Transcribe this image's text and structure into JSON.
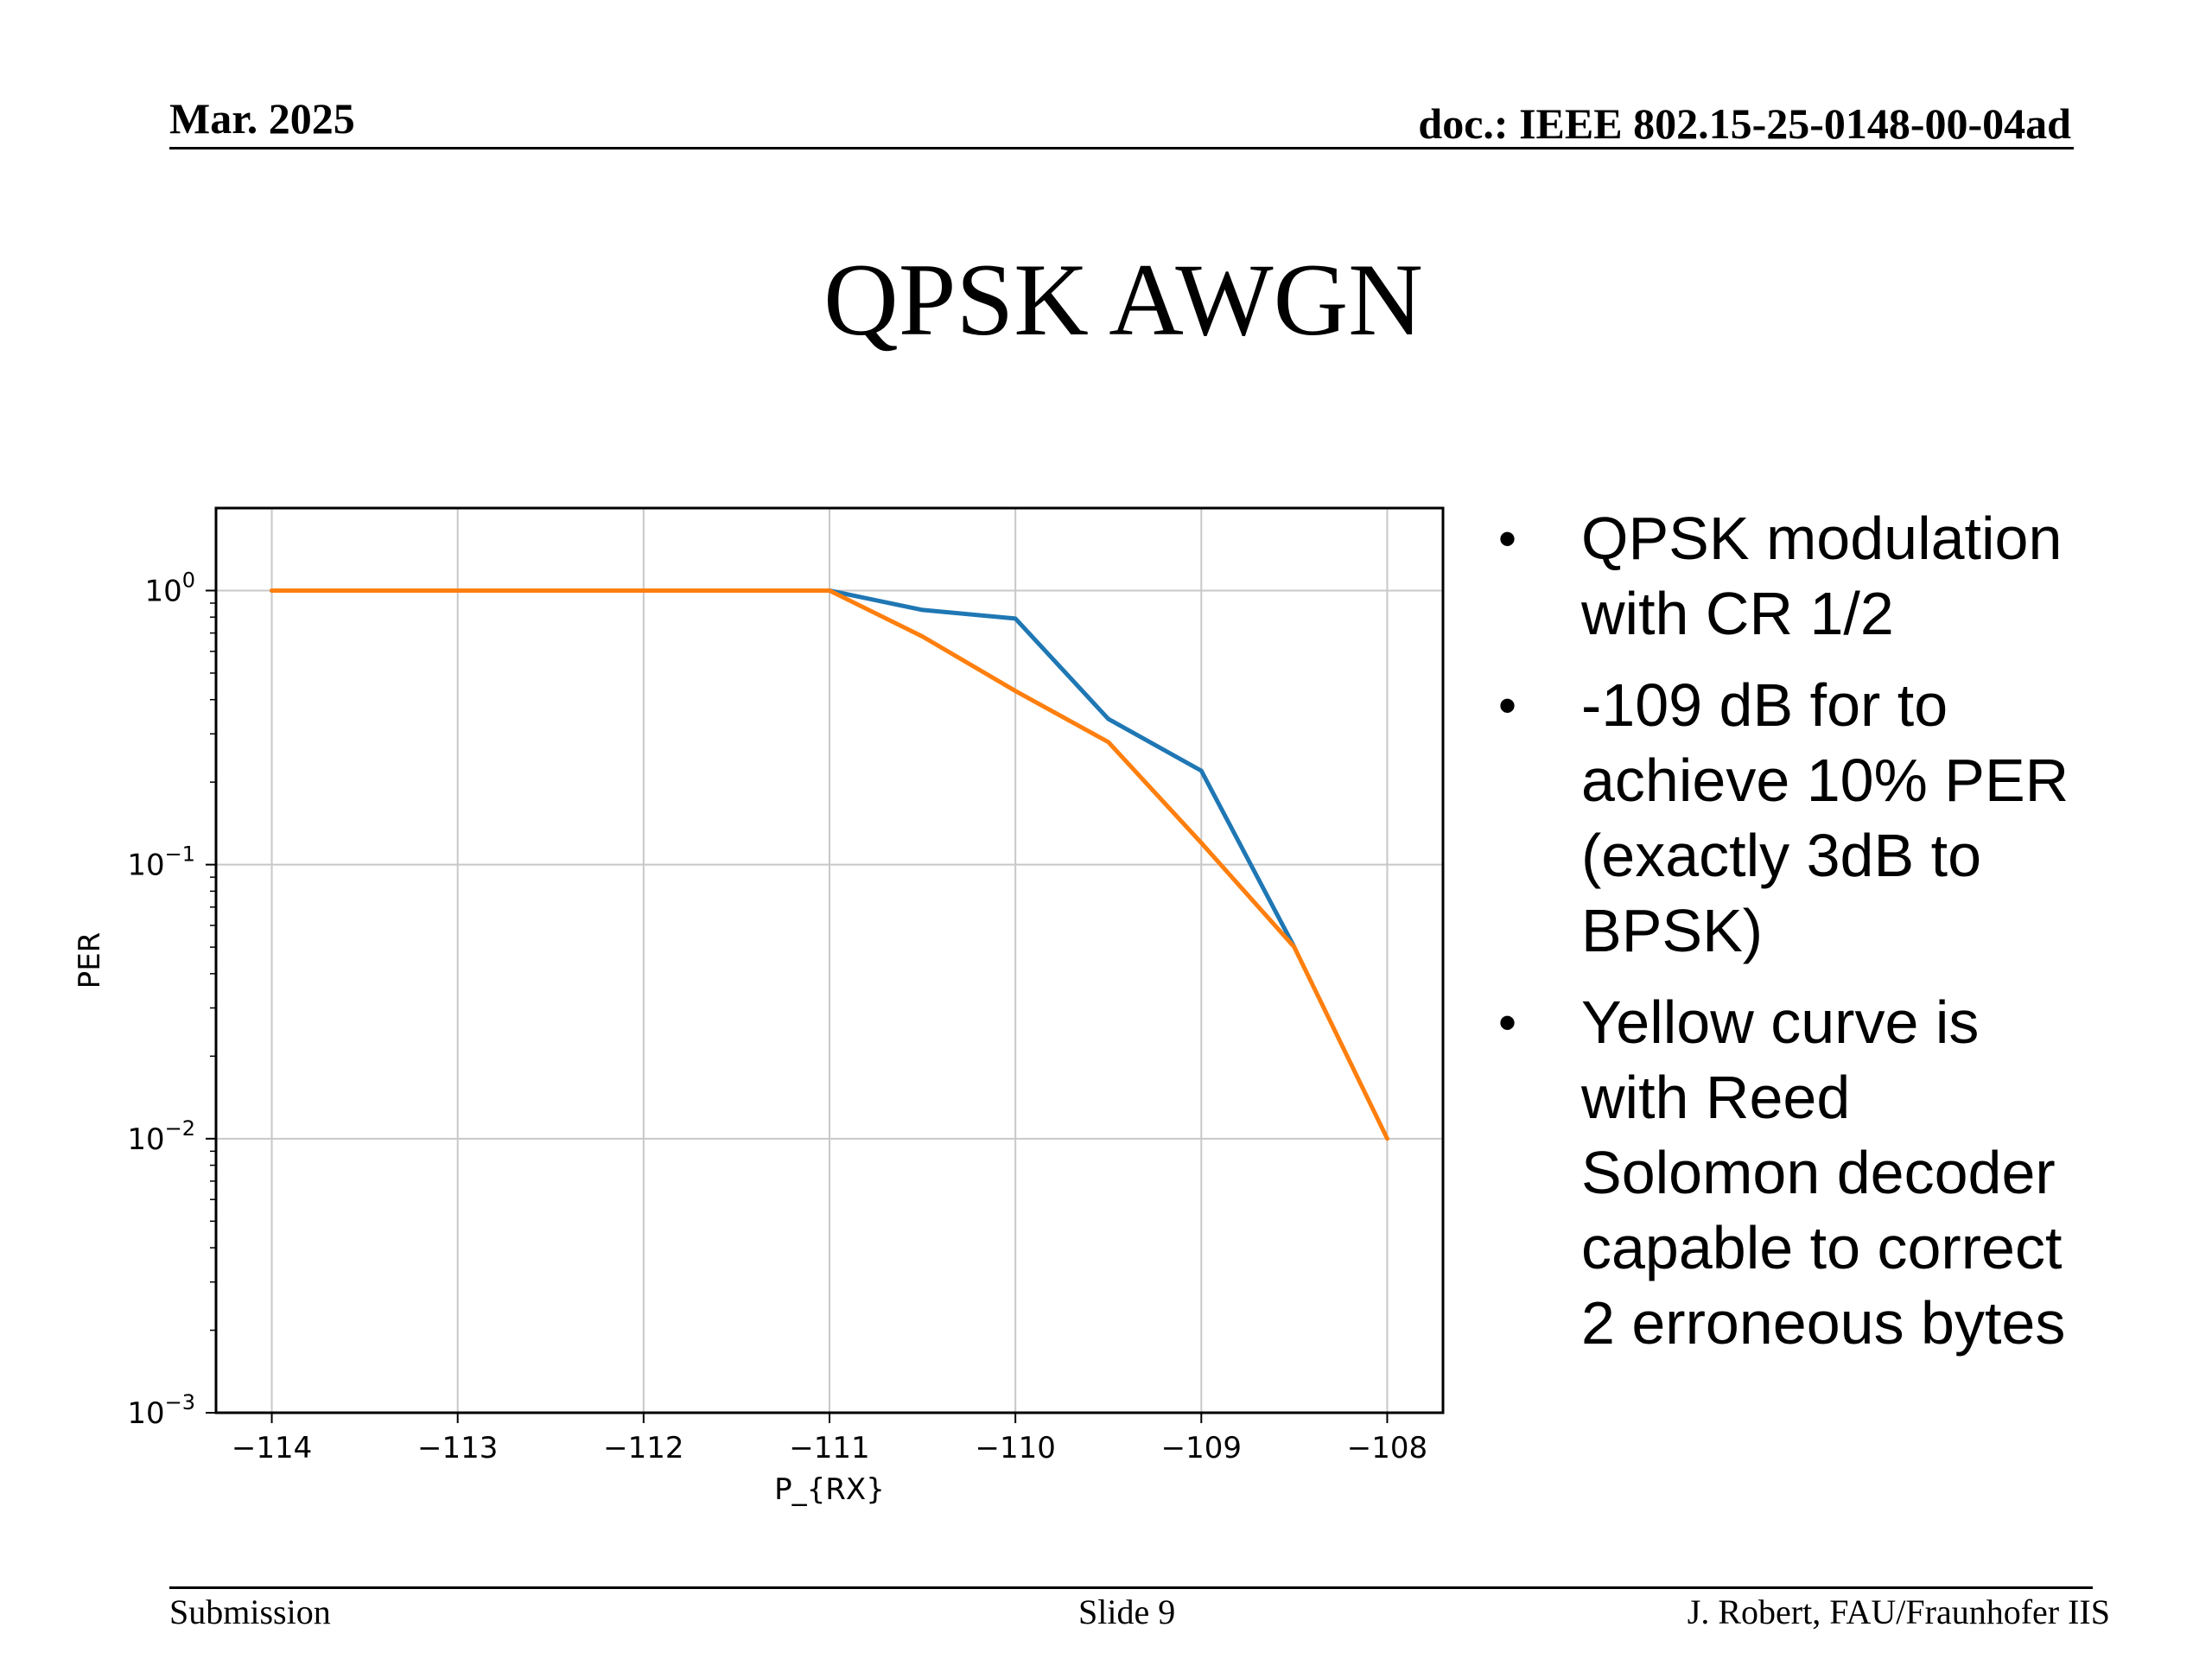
{
  "header": {
    "date": "Mar. 2025",
    "doc": "doc.: IEEE 802.15-25-0148-00-04ad"
  },
  "title": "QPSK AWGN",
  "bullets": [
    "QPSK modulation with CR 1/2",
    "-109 dB for to achieve 10% PER (exactly 3dB to BPSK)",
    "Yellow curve is with Reed Solomon decoder capable to correct 2 erroneous bytes"
  ],
  "footer": {
    "left": "Submission",
    "center": "Slide 9",
    "right": "J. Robert, FAU/Fraunhofer IIS"
  },
  "chart_data": {
    "type": "line",
    "title": "",
    "xlabel": "P_{RX}",
    "ylabel": "PER",
    "xlim": [
      -114.3,
      -107.7
    ],
    "ylim": [
      0.001,
      2
    ],
    "yscale": "log",
    "grid": true,
    "x_ticks": [
      -114,
      -113,
      -112,
      -111,
      -110,
      -109,
      -108
    ],
    "x_tick_labels": [
      "−114",
      "−113",
      "−112",
      "−111",
      "−110",
      "−109",
      "−108"
    ],
    "y_ticks": [
      {
        "value": 1,
        "base": "10",
        "exp": "0"
      },
      {
        "value": 0.1,
        "base": "10",
        "exp": "−1"
      },
      {
        "value": 0.01,
        "base": "10",
        "exp": "−2"
      },
      {
        "value": 0.001,
        "base": "10",
        "exp": "−3"
      }
    ],
    "series": [
      {
        "color": "#1f77b4",
        "x": [
          -114,
          -113.5,
          -113,
          -112.5,
          -112,
          -111.5,
          -111,
          -110.5,
          -110,
          -109.5,
          -109,
          -108.5
        ],
        "y": [
          1,
          1,
          1,
          1,
          1,
          1,
          1,
          0.85,
          0.79,
          0.34,
          0.22,
          0.05
        ]
      },
      {
        "color": "#ff7f0e",
        "x": [
          -114,
          -113.5,
          -113,
          -112.5,
          -112,
          -111.5,
          -111,
          -110.5,
          -110,
          -109.5,
          -109,
          -108.5,
          -108
        ],
        "y": [
          1,
          1,
          1,
          1,
          1,
          1,
          1,
          0.68,
          0.43,
          0.28,
          0.12,
          0.05,
          0.01
        ]
      }
    ]
  }
}
